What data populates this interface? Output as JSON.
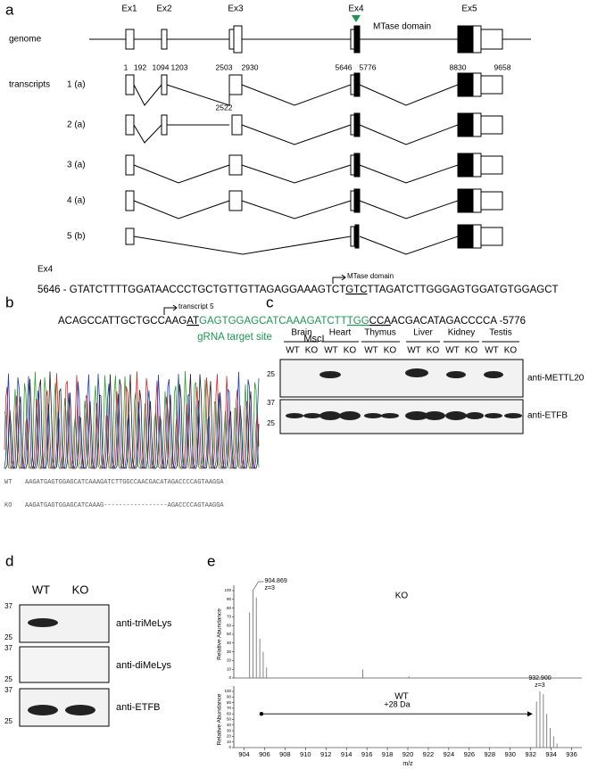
{
  "panel_a": {
    "label": "a",
    "exons": [
      "Ex1",
      "Ex2",
      "Ex3",
      "Ex4",
      "Ex5"
    ],
    "domain": "MTase domain",
    "genome_label": "genome",
    "transcripts_label": "transcripts",
    "positions": [
      "1",
      "192",
      "1094",
      "1203",
      "2503",
      "2930",
      "5646",
      "5776",
      "8830",
      "9658"
    ],
    "extra_position": "2522",
    "transcripts": [
      "1 (a)",
      "2 (a)",
      "3 (a)",
      "4 (a)",
      "5 (b)"
    ],
    "seq_title": "Ex4",
    "seq_line1": [
      "5646 - GTATCTTTTGGATAACCCTGCTGTTGTTAGAGGAAAGTCT",
      "GTC",
      "TTAGATCTTGGGAGTGGATGTGGAGCT"
    ],
    "seq_line1_note": "MTase domain",
    "seq_line2": [
      "ACAGCCATTGCTGCCAAG",
      "AT",
      "GAGTGGAGCATCAAAGATCTT",
      "TGG",
      "CCA",
      "ACGACATAGACCCCA -5776"
    ],
    "seq_line2_note": "transcript 5",
    "grna_label": "gRNA target site",
    "mscl_label": "MscI"
  },
  "panel_b": {
    "label": "b",
    "wt_label": "WT",
    "wt_seq": "AAGATGAGTGGAGCATCAAAGATCTTGGCCAACGACATAGACCCCAGTAAGGA",
    "ko_label": "KO",
    "ko_seq": "AAGATGAGTGGAGCATCAAAG-----------------AGACCCCAGTAAGGA"
  },
  "panel_c": {
    "label": "c",
    "tissues": [
      "Brain",
      "Heart",
      "Thymus",
      "Liver",
      "Kidney",
      "Testis"
    ],
    "lanes": [
      "WT",
      "KO"
    ],
    "markers_top": [
      "25"
    ],
    "markers_bottom": [
      "37",
      "25"
    ],
    "antibodies": [
      "anti-METTL20",
      "anti-ETFB"
    ]
  },
  "panel_d": {
    "label": "d",
    "lanes": [
      "WT",
      "KO"
    ],
    "blots": [
      {
        "markers": [
          "37",
          "25"
        ],
        "antibody": "anti-triMeLys"
      },
      {
        "markers": [
          "37",
          "25"
        ],
        "antibody": "anti-diMeLys"
      },
      {
        "markers": [
          "37",
          "25"
        ],
        "antibody": "anti-ETFB"
      }
    ]
  },
  "panel_e": {
    "label": "e",
    "y_label": "Relative Abundance",
    "x_label": "m/z",
    "xlim": [
      903,
      937
    ],
    "xticks": [
      904,
      906,
      908,
      910,
      912,
      914,
      916,
      918,
      920,
      922,
      924,
      926,
      928,
      930,
      932,
      934,
      936
    ],
    "ylim": [
      0,
      100
    ],
    "yticks": [
      0,
      10,
      20,
      30,
      40,
      50,
      60,
      70,
      80,
      90,
      100
    ],
    "ko": {
      "label": "KO",
      "peak_label": "904.869",
      "charge": "z=3",
      "mz": [
        904.54,
        904.87,
        905.2,
        905.54,
        905.87,
        906.2,
        915.6,
        920.1
      ],
      "abundance": [
        75,
        100,
        92,
        45,
        30,
        12,
        10,
        2
      ]
    },
    "wt": {
      "label": "WT",
      "peak_label": "932.900",
      "charge": "z=3",
      "shift": "+28 Da",
      "mz": [
        932.57,
        932.9,
        933.24,
        933.57,
        933.9,
        934.24,
        934.57
      ],
      "abundance": [
        82,
        100,
        95,
        60,
        35,
        20,
        7
      ]
    }
  }
}
